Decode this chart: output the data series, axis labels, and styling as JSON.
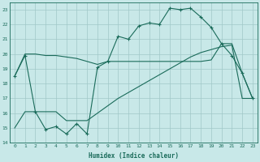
{
  "bg_color": "#c8e8e8",
  "grid_color": "#a0c8c8",
  "line_color": "#1a6b5a",
  "xlabel": "Humidex (Indice chaleur)",
  "xlim": [
    -0.5,
    23.5
  ],
  "ylim": [
    14,
    23.5
  ],
  "yticks": [
    14,
    15,
    16,
    17,
    18,
    19,
    20,
    21,
    22,
    23
  ],
  "xticks": [
    0,
    1,
    2,
    3,
    4,
    5,
    6,
    7,
    8,
    9,
    10,
    11,
    12,
    13,
    14,
    15,
    16,
    17,
    18,
    19,
    20,
    21,
    22,
    23
  ],
  "line1_x": [
    0,
    1,
    2,
    3,
    4,
    5,
    6,
    7,
    8,
    9,
    10,
    11,
    12,
    13,
    14,
    15,
    16,
    17,
    18,
    19,
    20,
    21,
    22,
    23
  ],
  "line1_y": [
    18.5,
    19.9,
    16.1,
    14.9,
    15.1,
    14.6,
    15.3,
    14.6,
    19.1,
    19.5,
    21.2,
    21.0,
    21.9,
    22.1,
    22.0,
    23.1,
    23.0,
    23.1,
    22.5,
    21.8,
    20.7,
    19.9,
    18.7,
    17.0
  ],
  "line2_x": [
    0,
    1,
    2,
    3,
    4,
    5,
    6,
    7,
    8,
    9,
    10,
    11,
    12,
    13,
    14,
    15,
    16,
    17,
    18,
    19,
    20,
    21,
    22,
    23
  ],
  "line2_y": [
    18.5,
    20.0,
    20.0,
    19.9,
    19.9,
    19.8,
    19.7,
    19.5,
    19.3,
    19.5,
    19.5,
    19.5,
    19.5,
    19.5,
    19.5,
    19.5,
    19.5,
    19.5,
    19.5,
    19.6,
    20.7,
    20.7,
    18.7,
    17.0
  ],
  "line3_x": [
    0,
    1,
    2,
    3,
    4,
    5,
    6,
    7,
    8,
    9,
    10,
    11,
    12,
    13,
    14,
    15,
    16,
    17,
    18,
    19,
    20,
    21,
    22,
    23
  ],
  "line3_y": [
    15.0,
    16.1,
    16.1,
    16.1,
    16.1,
    15.5,
    15.5,
    15.5,
    16.0,
    16.5,
    17.0,
    17.4,
    17.8,
    18.2,
    18.6,
    19.0,
    19.4,
    19.8,
    20.1,
    20.3,
    20.5,
    20.6,
    17.0,
    17.0
  ]
}
